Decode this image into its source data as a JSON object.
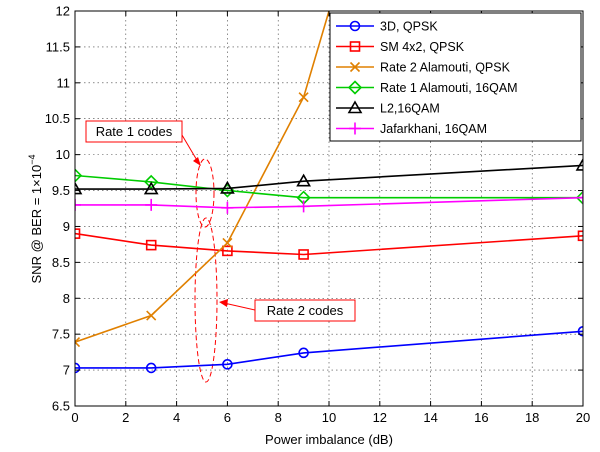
{
  "chart_data": {
    "type": "line",
    "xlabel": "Power imbalance (dB)",
    "ylabel": "SNR @ BER = 1×10",
    "ylabel_exponent": "−4",
    "xlim": [
      0,
      20
    ],
    "ylim": [
      6.5,
      12
    ],
    "xticks": [
      0,
      2,
      4,
      6,
      8,
      10,
      12,
      14,
      16,
      18,
      20
    ],
    "yticks": [
      6.5,
      7,
      7.5,
      8,
      8.5,
      9,
      9.5,
      10,
      10.5,
      11,
      11.5,
      12
    ],
    "xtick_labels": [
      "0",
      "2",
      "4",
      "6",
      "8",
      "10",
      "12",
      "14",
      "16",
      "18",
      "20"
    ],
    "ytick_labels": [
      "6.5",
      "7",
      "7.5",
      "8",
      "8.5",
      "9",
      "9.5",
      "10",
      "10.5",
      "11",
      "11.5",
      "12"
    ],
    "grid": true,
    "legend_position": "top-right",
    "series": [
      {
        "name": "3D, QPSK",
        "color": "#0000ff",
        "marker": "circle",
        "x": [
          0,
          3,
          6,
          9,
          20
        ],
        "y": [
          7.03,
          7.03,
          7.08,
          7.24,
          7.54
        ]
      },
      {
        "name": "SM 4x2, QPSK",
        "color": "#ff0000",
        "marker": "square",
        "x": [
          0,
          3,
          6,
          9,
          20
        ],
        "y": [
          8.9,
          8.74,
          8.66,
          8.61,
          8.87
        ]
      },
      {
        "name": "Rate 2 Alamouti, QPSK",
        "color": "#e08000",
        "marker": "x",
        "x": [
          0,
          3,
          6,
          9,
          10
        ],
        "y": [
          7.39,
          7.76,
          8.77,
          10.8,
          12
        ]
      },
      {
        "name": "Rate 1 Alamouti, 16QAM",
        "color": "#00cc00",
        "marker": "diamond",
        "x": [
          0,
          3,
          6,
          9,
          20
        ],
        "y": [
          9.71,
          9.62,
          9.5,
          9.4,
          9.4
        ]
      },
      {
        "name": "L2,16QAM",
        "color": "#000000",
        "marker": "triangle",
        "x": [
          0,
          3,
          6,
          9,
          20
        ],
        "y": [
          9.52,
          9.52,
          9.53,
          9.63,
          9.85
        ]
      },
      {
        "name": "Jafarkhani, 16QAM",
        "color": "#ff00ff",
        "marker": "plus",
        "x": [
          0,
          3,
          6,
          9,
          20
        ],
        "y": [
          9.3,
          9.3,
          9.26,
          9.28,
          9.4
        ]
      }
    ],
    "annotations": [
      {
        "text": "Rate 1 codes",
        "color": "#ff0000"
      },
      {
        "text": "Rate 2 codes",
        "color": "#ff0000"
      }
    ]
  }
}
